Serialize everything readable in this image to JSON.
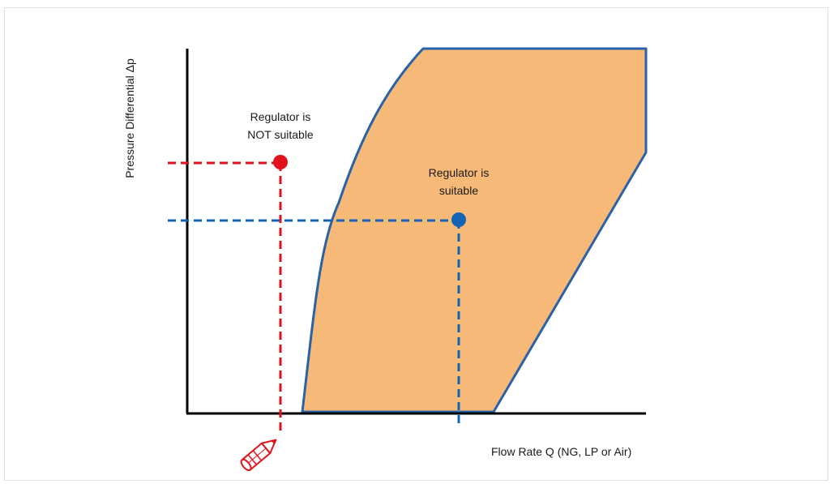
{
  "diagram": {
    "y_axis_label": "Pressure Differential Δp",
    "x_axis_label": "Flow Rate Q (NG, LP or Air)",
    "not_suitable": {
      "line1": "Regulator is",
      "line2": "NOT suitable",
      "color": "#e3111b"
    },
    "suitable": {
      "line1": "Regulator is",
      "line2": "suitable",
      "color": "#1464b4"
    },
    "region_fill": "#f6b978",
    "region_stroke": "#2a62a8",
    "pencil_icon": "pencil-icon"
  }
}
